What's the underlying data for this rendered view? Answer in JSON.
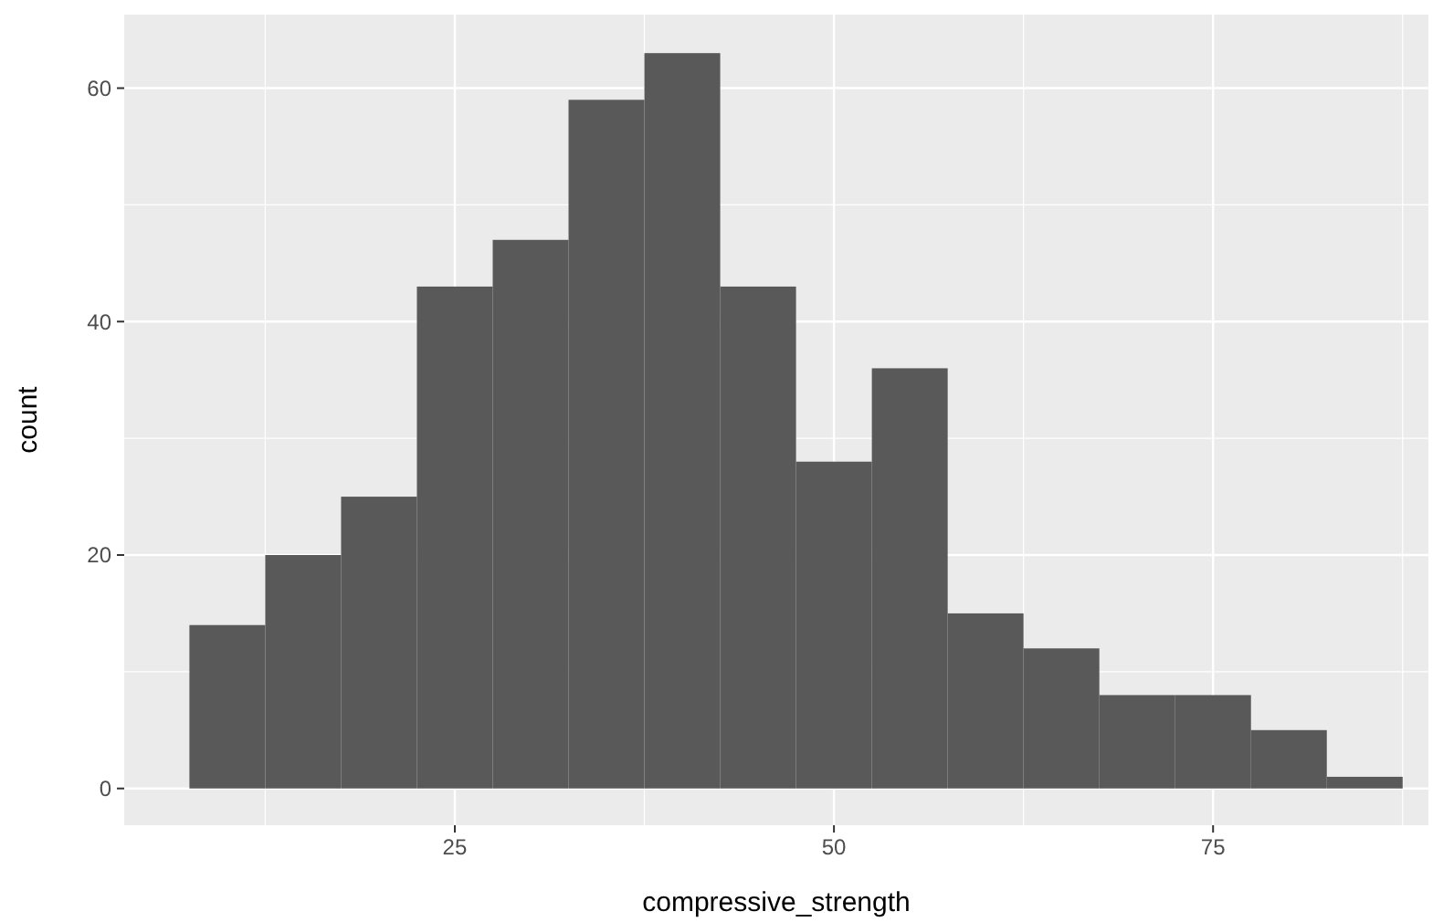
{
  "chart_data": {
    "type": "histogram",
    "xlabel": "compressive_strength",
    "ylabel": "count",
    "bins": [
      7.5,
      12.5,
      17.5,
      22.5,
      27.5,
      32.5,
      37.5,
      42.5,
      47.5,
      52.5,
      57.5,
      62.5,
      67.5,
      72.5,
      77.5,
      82.5,
      87.5
    ],
    "values": [
      14,
      20,
      25,
      43,
      47,
      59,
      63,
      43,
      28,
      36,
      15,
      12,
      8,
      8,
      5,
      1
    ],
    "color": "#595959",
    "xlim": [
      3.2,
      89.2
    ],
    "xticks": [
      25,
      50,
      75
    ],
    "ylim": [
      -3.15,
      66.3
    ],
    "yticks": [
      0,
      20,
      40,
      60
    ],
    "grid": true
  }
}
